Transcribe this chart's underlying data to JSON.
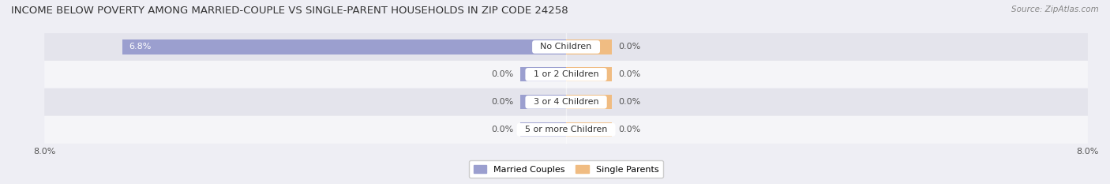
{
  "title": "INCOME BELOW POVERTY AMONG MARRIED-COUPLE VS SINGLE-PARENT HOUSEHOLDS IN ZIP CODE 24258",
  "source": "Source: ZipAtlas.com",
  "categories": [
    "No Children",
    "1 or 2 Children",
    "3 or 4 Children",
    "5 or more Children"
  ],
  "married_values": [
    6.8,
    0.0,
    0.0,
    0.0
  ],
  "single_values": [
    0.0,
    0.0,
    0.0,
    0.0
  ],
  "xlim_abs": 8.0,
  "married_color": "#9b9fcf",
  "single_color": "#f0bc82",
  "bar_height": 0.52,
  "min_bar_width": 0.7,
  "background_color": "#eeeef4",
  "row_bg_light": "#f5f5f8",
  "row_bg_dark": "#e4e4ec",
  "title_fontsize": 9.5,
  "label_fontsize": 8.0,
  "axis_fontsize": 8.0,
  "legend_married": "Married Couples",
  "legend_single": "Single Parents"
}
